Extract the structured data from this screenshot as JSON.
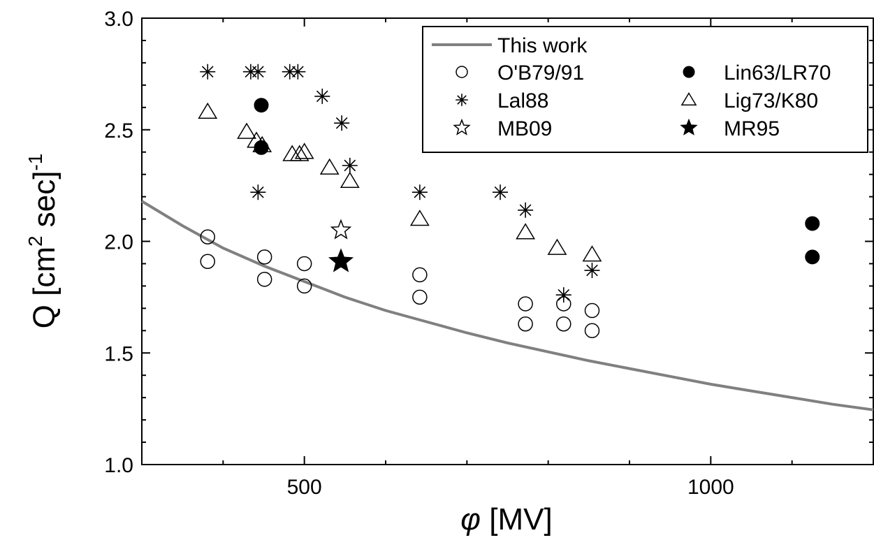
{
  "chart_data": {
    "type": "scatter",
    "xlabel": {
      "symbol": "φ",
      "unit": " [MV]"
    },
    "ylabel": {
      "text": "Q [cm",
      "sup1": "2",
      "mid": " sec]",
      "sup2": "-1"
    },
    "xlim": [
      300,
      1200
    ],
    "ylim": [
      1.0,
      3.0
    ],
    "x_ticks": [
      500,
      1000
    ],
    "y_ticks": [
      1.0,
      1.5,
      2.0,
      2.5,
      3.0
    ],
    "y_tick_labels": [
      "1.0",
      "1.5",
      "2.0",
      "2.5",
      "3.0"
    ],
    "x_tick_labels": [
      "500",
      "1000"
    ],
    "legend_position": "top-right",
    "curve": {
      "name": "This work",
      "color": "#808080",
      "x": [
        300,
        350,
        400,
        450,
        500,
        550,
        600,
        650,
        700,
        750,
        800,
        850,
        900,
        950,
        1000,
        1050,
        1100,
        1150,
        1200
      ],
      "y": [
        2.18,
        2.07,
        1.97,
        1.89,
        1.82,
        1.75,
        1.69,
        1.64,
        1.59,
        1.545,
        1.505,
        1.465,
        1.43,
        1.395,
        1.36,
        1.33,
        1.3,
        1.27,
        1.245
      ]
    },
    "series": [
      {
        "name": "O'B79/91",
        "marker": "open-circle",
        "x": [
          381,
          381,
          451,
          451,
          500,
          500,
          642,
          642,
          772,
          772,
          819,
          819,
          854,
          854
        ],
        "y": [
          2.02,
          1.91,
          1.93,
          1.83,
          1.9,
          1.8,
          1.85,
          1.75,
          1.72,
          1.63,
          1.72,
          1.63,
          1.69,
          1.6
        ]
      },
      {
        "name": "Lal88",
        "marker": "asterisk",
        "x": [
          381,
          434,
          443,
          482,
          492,
          522,
          546,
          556,
          642,
          741,
          772,
          819,
          854,
          443
        ],
        "y": [
          2.76,
          2.76,
          2.76,
          2.76,
          2.76,
          2.65,
          2.53,
          2.34,
          2.22,
          2.22,
          2.14,
          1.76,
          1.87,
          2.22
        ]
      },
      {
        "name": "MB09",
        "marker": "open-star",
        "x": [
          545
        ],
        "y": [
          2.05
        ]
      },
      {
        "name": "Lin63/LR70",
        "marker": "filled-circle",
        "x": [
          447,
          447,
          1125,
          1125
        ],
        "y": [
          2.61,
          2.42,
          2.08,
          1.93
        ]
      },
      {
        "name": "Lig73/K80",
        "marker": "open-triangle",
        "x": [
          381,
          429,
          441,
          448,
          485,
          494,
          500,
          531,
          556,
          642,
          772,
          811,
          854
        ],
        "y": [
          2.58,
          2.49,
          2.45,
          2.43,
          2.39,
          2.39,
          2.4,
          2.33,
          2.27,
          2.1,
          2.04,
          1.97,
          1.94
        ]
      },
      {
        "name": "MR95",
        "marker": "filled-star",
        "x": [
          545
        ],
        "y": [
          1.91
        ]
      }
    ]
  }
}
